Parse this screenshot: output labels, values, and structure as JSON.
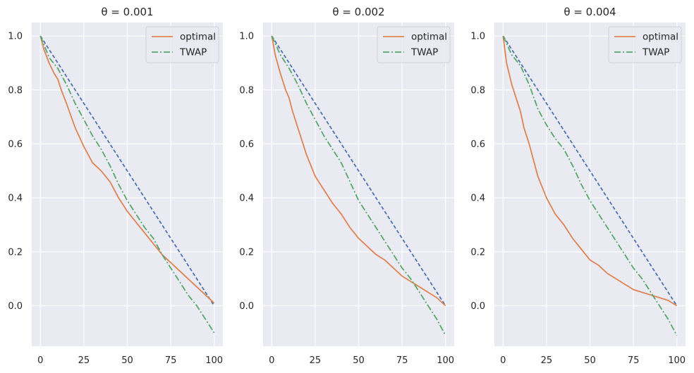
{
  "chart_data": [
    {
      "type": "line",
      "title": "θ = 0.001",
      "xlim": [
        -5,
        105
      ],
      "ylim": [
        -0.15,
        1.05
      ],
      "xticks": [
        0,
        25,
        50,
        75,
        100
      ],
      "yticks": [
        0.0,
        0.2,
        0.4,
        0.6,
        0.8,
        1.0
      ],
      "xtick_labels": [
        "0",
        "25",
        "50",
        "75",
        "100"
      ],
      "ytick_labels": [
        "0.0",
        "0.2",
        "0.4",
        "0.6",
        "0.8",
        "1.0"
      ],
      "legend_position": "top-right",
      "series": [
        {
          "name": "",
          "color": "#4c72b0",
          "style": "dashed",
          "x": [
            0,
            100
          ],
          "y": [
            1.0,
            0.0
          ]
        },
        {
          "name": "optimal",
          "color": "#dd8452",
          "style": "solid",
          "x": [
            0,
            2,
            5,
            8,
            10,
            12,
            15,
            20,
            25,
            30,
            35,
            40,
            45,
            50,
            55,
            60,
            65,
            70,
            75,
            80,
            85,
            90,
            95,
            100
          ],
          "y": [
            1.0,
            0.95,
            0.9,
            0.86,
            0.84,
            0.8,
            0.75,
            0.66,
            0.59,
            0.53,
            0.5,
            0.46,
            0.4,
            0.35,
            0.31,
            0.27,
            0.23,
            0.19,
            0.16,
            0.13,
            0.1,
            0.07,
            0.04,
            0.01
          ]
        },
        {
          "name": "TWAP",
          "color": "#55a868",
          "style": "dashdot",
          "x": [
            0,
            5,
            10,
            15,
            20,
            25,
            30,
            35,
            40,
            45,
            50,
            55,
            60,
            65,
            70,
            75,
            80,
            85,
            90,
            95,
            100
          ],
          "y": [
            1.0,
            0.92,
            0.88,
            0.82,
            0.75,
            0.69,
            0.63,
            0.58,
            0.52,
            0.45,
            0.39,
            0.34,
            0.29,
            0.25,
            0.19,
            0.14,
            0.09,
            0.04,
            0.0,
            -0.05,
            -0.1
          ]
        }
      ]
    },
    {
      "type": "line",
      "title": "θ = 0.002",
      "xlim": [
        -5,
        105
      ],
      "ylim": [
        -0.15,
        1.05
      ],
      "xticks": [
        0,
        25,
        50,
        75,
        100
      ],
      "yticks": [
        0.0,
        0.2,
        0.4,
        0.6,
        0.8,
        1.0
      ],
      "xtick_labels": [
        "0",
        "25",
        "50",
        "75",
        "100"
      ],
      "ytick_labels": [
        "0.0",
        "0.2",
        "0.4",
        "0.6",
        "0.8",
        "1.0"
      ],
      "legend_position": "top-right",
      "series": [
        {
          "name": "",
          "color": "#4c72b0",
          "style": "dashed",
          "x": [
            0,
            100
          ],
          "y": [
            1.0,
            0.0
          ]
        },
        {
          "name": "optimal",
          "color": "#dd8452",
          "style": "solid",
          "x": [
            0,
            2,
            5,
            8,
            10,
            12,
            15,
            20,
            25,
            30,
            35,
            40,
            45,
            50,
            55,
            60,
            65,
            70,
            75,
            80,
            85,
            90,
            95,
            100
          ],
          "y": [
            1.0,
            0.93,
            0.86,
            0.8,
            0.77,
            0.72,
            0.66,
            0.56,
            0.48,
            0.43,
            0.38,
            0.34,
            0.29,
            0.25,
            0.22,
            0.19,
            0.17,
            0.14,
            0.11,
            0.09,
            0.07,
            0.05,
            0.03,
            0.0
          ]
        },
        {
          "name": "TWAP",
          "color": "#55a868",
          "style": "dashdot",
          "x": [
            0,
            5,
            10,
            15,
            20,
            25,
            30,
            35,
            40,
            45,
            50,
            55,
            60,
            65,
            70,
            75,
            80,
            85,
            90,
            95,
            100
          ],
          "y": [
            1.0,
            0.93,
            0.88,
            0.82,
            0.75,
            0.69,
            0.63,
            0.58,
            0.53,
            0.46,
            0.39,
            0.34,
            0.29,
            0.24,
            0.19,
            0.14,
            0.1,
            0.05,
            0.0,
            -0.05,
            -0.11
          ]
        }
      ]
    },
    {
      "type": "line",
      "title": "θ = 0.004",
      "xlim": [
        -5,
        105
      ],
      "ylim": [
        -0.15,
        1.05
      ],
      "xticks": [
        0,
        25,
        50,
        75,
        100
      ],
      "yticks": [
        0.0,
        0.2,
        0.4,
        0.6,
        0.8,
        1.0
      ],
      "xtick_labels": [
        "0",
        "25",
        "50",
        "75",
        "100"
      ],
      "ytick_labels": [
        "0.0",
        "0.2",
        "0.4",
        "0.6",
        "0.8",
        "1.0"
      ],
      "legend_position": "top-right",
      "series": [
        {
          "name": "",
          "color": "#4c72b0",
          "style": "dashed",
          "x": [
            0,
            100
          ],
          "y": [
            1.0,
            0.0
          ]
        },
        {
          "name": "optimal",
          "color": "#dd8452",
          "style": "solid",
          "x": [
            0,
            2,
            5,
            8,
            10,
            12,
            15,
            20,
            25,
            30,
            35,
            40,
            45,
            50,
            55,
            60,
            65,
            70,
            75,
            80,
            85,
            90,
            95,
            100
          ],
          "y": [
            1.0,
            0.9,
            0.82,
            0.76,
            0.72,
            0.66,
            0.6,
            0.48,
            0.4,
            0.34,
            0.3,
            0.25,
            0.21,
            0.17,
            0.15,
            0.12,
            0.1,
            0.08,
            0.06,
            0.05,
            0.04,
            0.03,
            0.02,
            0.0
          ]
        },
        {
          "name": "TWAP",
          "color": "#55a868",
          "style": "dashdot",
          "x": [
            0,
            5,
            10,
            15,
            20,
            25,
            30,
            35,
            40,
            45,
            50,
            55,
            60,
            65,
            70,
            75,
            80,
            85,
            90,
            95,
            100
          ],
          "y": [
            1.0,
            0.93,
            0.89,
            0.82,
            0.73,
            0.67,
            0.62,
            0.58,
            0.52,
            0.45,
            0.39,
            0.34,
            0.29,
            0.24,
            0.19,
            0.14,
            0.1,
            0.05,
            0.0,
            -0.05,
            -0.11
          ]
        }
      ]
    }
  ]
}
